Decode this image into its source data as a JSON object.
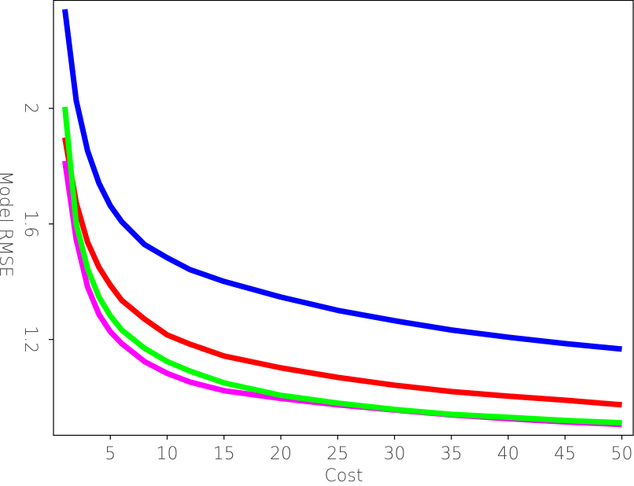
{
  "chart_data": {
    "type": "line",
    "x_label": "Cost",
    "y_label": "Model RMSE",
    "x": [
      1,
      2,
      3,
      4,
      5,
      6,
      8,
      10,
      12,
      15,
      20,
      25,
      30,
      35,
      40,
      45,
      50
    ],
    "series": [
      {
        "color": "#0000ff",
        "values": [
          2.343,
          2.027,
          1.853,
          1.741,
          1.663,
          1.608,
          1.529,
          1.483,
          1.442,
          1.401,
          1.347,
          1.301,
          1.265,
          1.233,
          1.208,
          1.186,
          1.167
        ]
      },
      {
        "color": "#ff0000",
        "values": [
          1.899,
          1.673,
          1.537,
          1.45,
          1.388,
          1.336,
          1.271,
          1.216,
          1.184,
          1.143,
          1.102,
          1.069,
          1.042,
          1.02,
          1.004,
          0.99,
          0.974
        ]
      },
      {
        "color": "#ff00ff",
        "values": [
          1.818,
          1.546,
          1.382,
          1.287,
          1.227,
          1.186,
          1.124,
          1.083,
          1.053,
          1.023,
          0.996,
          0.974,
          0.956,
          0.939,
          0.926,
          0.915,
          0.906
        ]
      },
      {
        "color": "#00ff00",
        "values": [
          2.005,
          1.6,
          1.445,
          1.347,
          1.282,
          1.233,
          1.17,
          1.124,
          1.091,
          1.05,
          1.007,
          0.98,
          0.958,
          0.941,
          0.931,
          0.92,
          0.912
        ]
      }
    ],
    "xlim": [
      0,
      51
    ],
    "xticks": [
      5,
      10,
      15,
      20,
      25,
      30,
      35,
      40,
      45,
      50
    ],
    "ylim": [
      0.87,
      2.375
    ],
    "yticks": [
      1.2,
      1.6,
      2
    ]
  }
}
